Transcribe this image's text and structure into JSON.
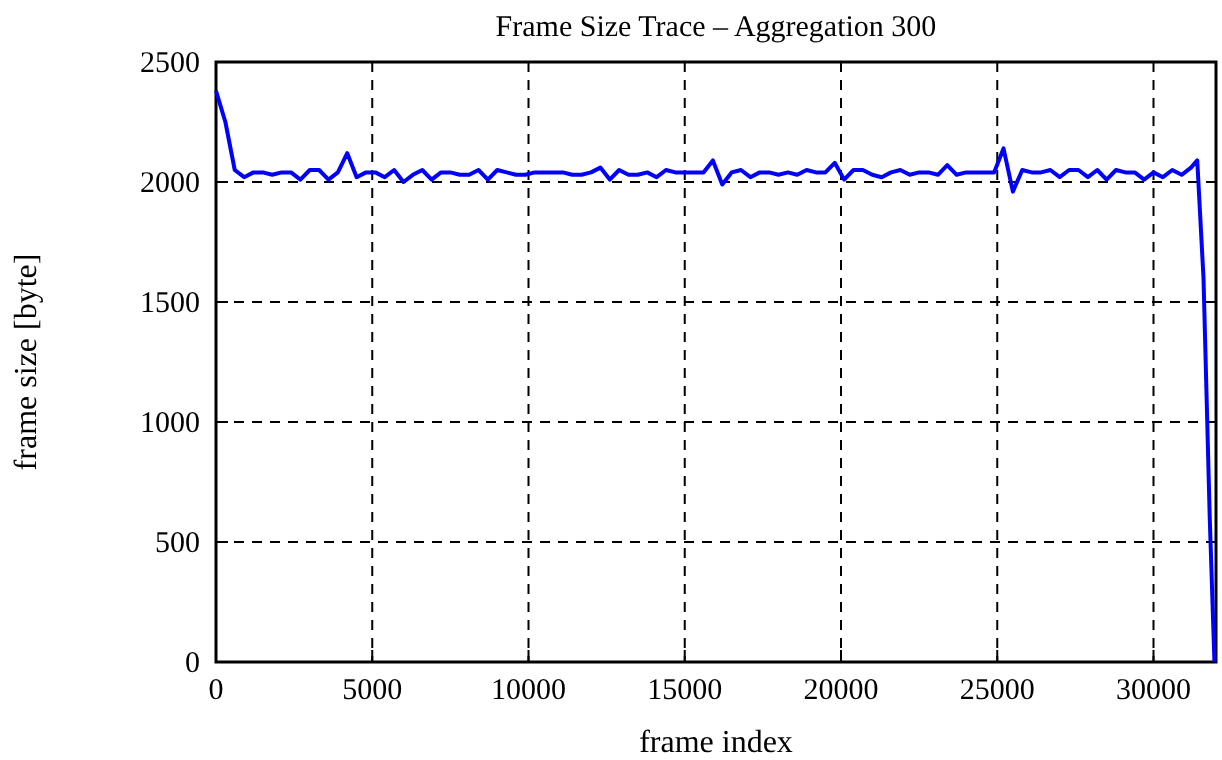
{
  "chart_data": {
    "type": "line",
    "title": "Frame Size Trace – Aggregation 300",
    "xlabel": "frame index",
    "ylabel": "frame size [byte]",
    "xlim": [
      0,
      32000
    ],
    "ylim": [
      0,
      2500
    ],
    "xticks": [
      0,
      5000,
      10000,
      15000,
      20000,
      25000,
      30000
    ],
    "yticks": [
      0,
      500,
      1000,
      1500,
      2000,
      2500
    ],
    "grid": true,
    "line_style": "solid",
    "marker": "none",
    "series": [
      {
        "color": "#0000ff",
        "x": [
          0,
          300,
          600,
          900,
          1200,
          1500,
          1800,
          2100,
          2400,
          2700,
          3000,
          3300,
          3600,
          3900,
          4200,
          4500,
          4800,
          5100,
          5400,
          5700,
          6000,
          6300,
          6600,
          6900,
          7200,
          7500,
          7800,
          8100,
          8400,
          8700,
          9000,
          9300,
          9600,
          9900,
          10200,
          10500,
          10800,
          11100,
          11400,
          11700,
          12000,
          12300,
          12600,
          12900,
          13200,
          13500,
          13800,
          14100,
          14400,
          14700,
          15000,
          15300,
          15600,
          15900,
          16200,
          16500,
          16800,
          17100,
          17400,
          17700,
          18000,
          18300,
          18600,
          18900,
          19200,
          19500,
          19800,
          20100,
          20400,
          20700,
          21000,
          21300,
          21600,
          21900,
          22200,
          22500,
          22800,
          23100,
          23400,
          23700,
          24000,
          24300,
          24600,
          24900,
          25200,
          25500,
          25800,
          26100,
          26400,
          26700,
          27000,
          27300,
          27600,
          27900,
          28200,
          28500,
          28800,
          29100,
          29400,
          29700,
          30000,
          30300,
          30600,
          30900,
          31200,
          31400,
          31600,
          31800,
          31950
        ],
        "values": [
          2380,
          2250,
          2050,
          2020,
          2040,
          2040,
          2030,
          2040,
          2040,
          2010,
          2050,
          2050,
          2010,
          2040,
          2120,
          2020,
          2040,
          2040,
          2020,
          2050,
          2000,
          2030,
          2050,
          2010,
          2040,
          2040,
          2030,
          2030,
          2050,
          2010,
          2050,
          2040,
          2030,
          2030,
          2040,
          2040,
          2040,
          2040,
          2030,
          2030,
          2040,
          2060,
          2010,
          2050,
          2030,
          2030,
          2040,
          2020,
          2050,
          2040,
          2040,
          2040,
          2040,
          2090,
          1990,
          2040,
          2050,
          2020,
          2040,
          2040,
          2030,
          2040,
          2030,
          2050,
          2040,
          2040,
          2080,
          2010,
          2050,
          2050,
          2030,
          2020,
          2040,
          2050,
          2030,
          2040,
          2040,
          2030,
          2070,
          2030,
          2040,
          2040,
          2040,
          2040,
          2140,
          1960,
          2050,
          2040,
          2040,
          2050,
          2020,
          2050,
          2050,
          2020,
          2050,
          2010,
          2050,
          2040,
          2040,
          2010,
          2040,
          2020,
          2050,
          2030,
          2060,
          2090,
          1600,
          600,
          0
        ]
      }
    ]
  }
}
